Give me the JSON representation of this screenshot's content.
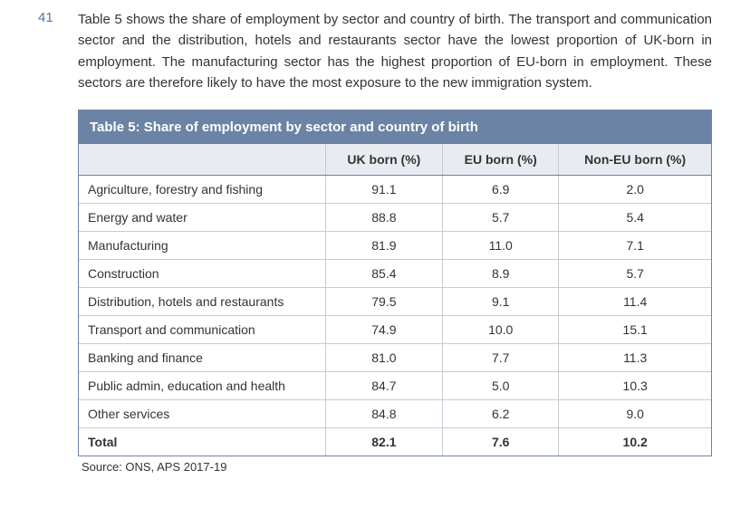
{
  "paragraph": {
    "number": "41",
    "text": "Table 5 shows the share of employment by sector and country of birth. The transport and communication sector and the distribution, hotels and restaurants sector have the lowest proportion of UK-born in employment. The manufacturing sector has the highest proportion of EU-born in employment. These sectors are therefore likely to have the most exposure to the new immigration system."
  },
  "table": {
    "title": "Table 5: Share of employment by sector and country of birth",
    "columns": [
      "",
      "UK born (%)",
      "EU born (%)",
      "Non-EU born (%)"
    ],
    "rows": [
      {
        "sector": "Agriculture, forestry and fishing",
        "uk": "91.1",
        "eu": "6.9",
        "noneu": "2.0"
      },
      {
        "sector": "Energy and water",
        "uk": "88.8",
        "eu": "5.7",
        "noneu": "5.4"
      },
      {
        "sector": "Manufacturing",
        "uk": "81.9",
        "eu": "11.0",
        "noneu": "7.1"
      },
      {
        "sector": "Construction",
        "uk": "85.4",
        "eu": "8.9",
        "noneu": "5.7"
      },
      {
        "sector": "Distribution, hotels and restaurants",
        "uk": "79.5",
        "eu": "9.1",
        "noneu": "11.4"
      },
      {
        "sector": "Transport and communication",
        "uk": "74.9",
        "eu": "10.0",
        "noneu": "15.1"
      },
      {
        "sector": "Banking and finance",
        "uk": "81.0",
        "eu": "7.7",
        "noneu": "11.3"
      },
      {
        "sector": "Public admin, education and health",
        "uk": "84.7",
        "eu": "5.0",
        "noneu": "10.3"
      },
      {
        "sector": "Other services",
        "uk": "84.8",
        "eu": "6.2",
        "noneu": "9.0"
      }
    ],
    "total": {
      "sector": "Total",
      "uk": "82.1",
      "eu": "7.6",
      "noneu": "10.2"
    }
  },
  "source": "Source: ONS, APS 2017-19"
}
